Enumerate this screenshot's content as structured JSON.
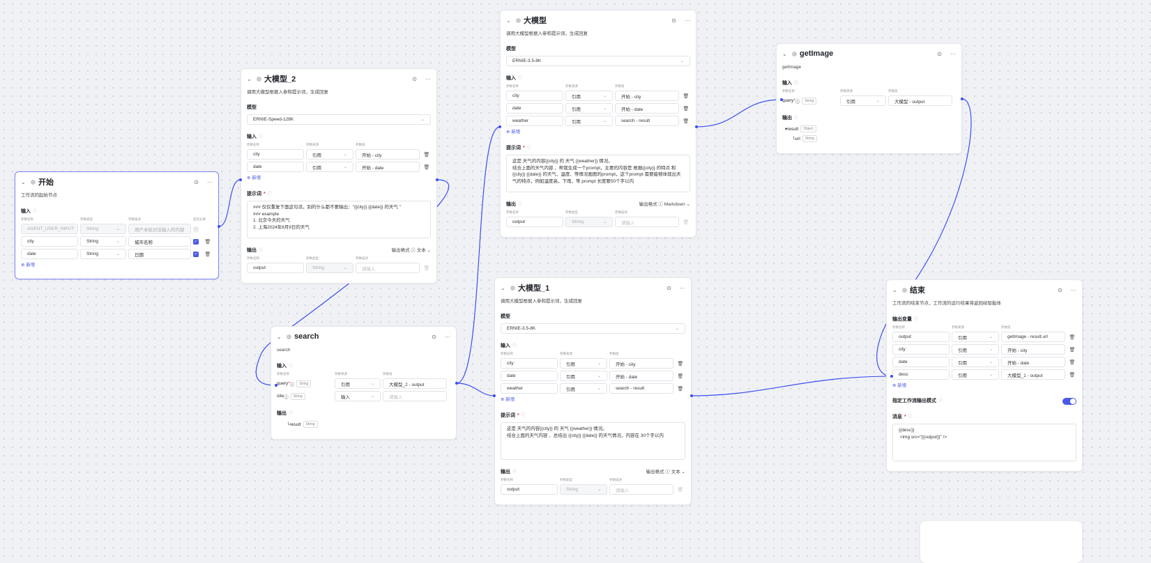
{
  "colors": {
    "accent": "#4a5ae8",
    "edge": "#3b4ef0"
  },
  "nodes": [
    {
      "id": "start",
      "title": "开始",
      "desc": "工作流的起始节点",
      "selected": true,
      "sections": [
        {
          "kind": "params",
          "label": "输入",
          "cols": [
            "参数名称",
            "参数类型",
            "参数描述",
            "是否必要"
          ],
          "rows": [
            {
              "name": "AGENT_USER_INPUT",
              "type": "String",
              "desc": "用户本轮对话输入的内容",
              "disabled": true
            },
            {
              "name": "city",
              "type": "String",
              "desc": "城市名称"
            },
            {
              "name": "date",
              "type": "String",
              "desc": "日期"
            }
          ],
          "add": "新增"
        }
      ]
    },
    {
      "id": "llm2",
      "title": "大模型_2",
      "desc": "调用大模型根据入参和提示词，生成回复",
      "sections": [
        {
          "kind": "model",
          "label": "模型",
          "value": "ERNIE-Speed-128K"
        },
        {
          "kind": "inputs",
          "label": "输入",
          "cols": [
            "参数名称",
            "参数来源",
            "参数值"
          ],
          "rows": [
            {
              "name": "city",
              "source": "引用",
              "value": "开始 - city"
            },
            {
              "name": "date",
              "source": "引用",
              "value": "开始 - date"
            }
          ],
          "add": "新增"
        },
        {
          "kind": "prompt",
          "label": "提示词",
          "text": "### 仅仅重复下面这句话，别的什么都不要输出：\"{{city}} {{date}} 的天气 \"\n### example\n1. 北京今天的天气\n2. 上海2024年8月9日的天气"
        },
        {
          "kind": "outputs",
          "label": "输出",
          "format_label": "输出格式",
          "format": "文本",
          "cols": [
            "参数名称",
            "参数类型",
            "参数描述"
          ],
          "rows": [
            {
              "name": "output",
              "type": "String",
              "desc": "请输入"
            }
          ]
        }
      ]
    },
    {
      "id": "llm",
      "title": "大模型",
      "desc": "调用大模型根据入参和提示词，生成回复",
      "sections": [
        {
          "kind": "model",
          "label": "模型",
          "value": "ERNIE-3.5-8K"
        },
        {
          "kind": "inputs",
          "label": "输入",
          "cols": [
            "参数名称",
            "参数来源",
            "参数值"
          ],
          "rows": [
            {
              "name": "city",
              "source": "引用",
              "value": "开始 - city"
            },
            {
              "name": "date",
              "source": "引用",
              "value": "开始 - date"
            },
            {
              "name": "weather",
              "source": "引用",
              "value": "search - result"
            }
          ],
          "add": "新增"
        },
        {
          "kind": "prompt",
          "label": "提示词",
          "text": "这是 天气的内容{{city}} 的 天气 {{weather}} 情况。\n结合上面的天气内容 、帮我生成一个prompt，主要的内容是 根据{{city}} 的特点 和 {{city}} {{date}} 的天气、温度、等情况画图的prompt，这个prompt 需要能够体现出天气的特点，例如温度高，下雨，等 prompt 长度要50个字以内"
        },
        {
          "kind": "outputs",
          "label": "输出",
          "format_label": "输出格式",
          "format": "Markdown",
          "cols": [
            "参数名称",
            "参数类型",
            "参数描述"
          ],
          "rows": [
            {
              "name": "output",
              "type": "String",
              "desc": "请输入"
            }
          ]
        }
      ]
    },
    {
      "id": "getimage",
      "title": "getImage",
      "desc": "getImage",
      "sections": [
        {
          "kind": "tool-inputs",
          "label": "输入",
          "cols": [
            "参数名称",
            "参数来源",
            "参数值"
          ],
          "rows": [
            {
              "name": "query",
              "required": true,
              "type": "String",
              "source": "引用",
              "value": "大模型 - output"
            }
          ]
        },
        {
          "kind": "tool-outputs",
          "label": "输出",
          "items": [
            {
              "name": "result",
              "type": "Object",
              "level": 0
            },
            {
              "name": "url",
              "type": "String",
              "level": 1
            }
          ]
        }
      ]
    },
    {
      "id": "search",
      "title": "search",
      "desc": "search",
      "sections": [
        {
          "kind": "tool-inputs",
          "label": "输入",
          "cols": [
            "参数名称",
            "参数来源",
            "参数值"
          ],
          "rows": [
            {
              "name": "query",
              "required": true,
              "type": "String",
              "source": "引用",
              "value": "大模型_2 - output"
            },
            {
              "name": "site",
              "type": "String",
              "source": "输入",
              "value": "请输入",
              "placeholder": true
            }
          ]
        },
        {
          "kind": "tool-outputs",
          "label": "输出",
          "items": [
            {
              "name": "result",
              "type": "String",
              "level": 1
            }
          ]
        }
      ]
    },
    {
      "id": "llm1",
      "title": "大模型_1",
      "desc": "调用大模型根据入参和提示词，生成回复",
      "sections": [
        {
          "kind": "model",
          "label": "模型",
          "value": "ERNIE-3.5-8K"
        },
        {
          "kind": "inputs",
          "label": "输入",
          "cols": [
            "参数名称",
            "参数来源",
            "参数值"
          ],
          "rows": [
            {
              "name": "city",
              "source": "引用",
              "value": "开始 - city"
            },
            {
              "name": "date",
              "source": "引用",
              "value": "开始 - date"
            },
            {
              "name": "weather",
              "source": "引用",
              "value": "search - result"
            }
          ],
          "add": "新增"
        },
        {
          "kind": "prompt",
          "label": "提示词",
          "text": "这是 天气的内容{{city}} 的 天气 {{weather}} 情况。\n结合上面的天气内容 、总结出 {{city}} {{date}} 的天气情况，内容在 30个字以内"
        },
        {
          "kind": "outputs",
          "label": "输出",
          "format_label": "输出格式",
          "format": "文本",
          "cols": [
            "参数名称",
            "参数类型",
            "参数描述"
          ],
          "rows": [
            {
              "name": "output",
              "type": "String",
              "desc": "请输入"
            }
          ]
        }
      ]
    },
    {
      "id": "end",
      "title": "结束",
      "desc": "工作流的结束节点，工作流的运行结果将返回给智能体",
      "sections": [
        {
          "kind": "inputs",
          "label": "输出变量",
          "cols": [
            "参数名称",
            "参数来源",
            "参数值"
          ],
          "rows": [
            {
              "name": "output",
              "source": "引用",
              "value": "getImage - result.url"
            },
            {
              "name": "city",
              "source": "引用",
              "value": "开始 - city"
            },
            {
              "name": "date",
              "source": "引用",
              "value": "开始 - date"
            },
            {
              "name": "desc",
              "source": "引用",
              "value": "大模型_1 - output"
            }
          ],
          "add": "新增"
        },
        {
          "kind": "toggle",
          "label": "指定工作流输出模式",
          "on": true
        },
        {
          "kind": "prompt",
          "label": "消息",
          "text": "{{desc}}\n <img src=\"{{output}}\" />"
        }
      ]
    }
  ]
}
